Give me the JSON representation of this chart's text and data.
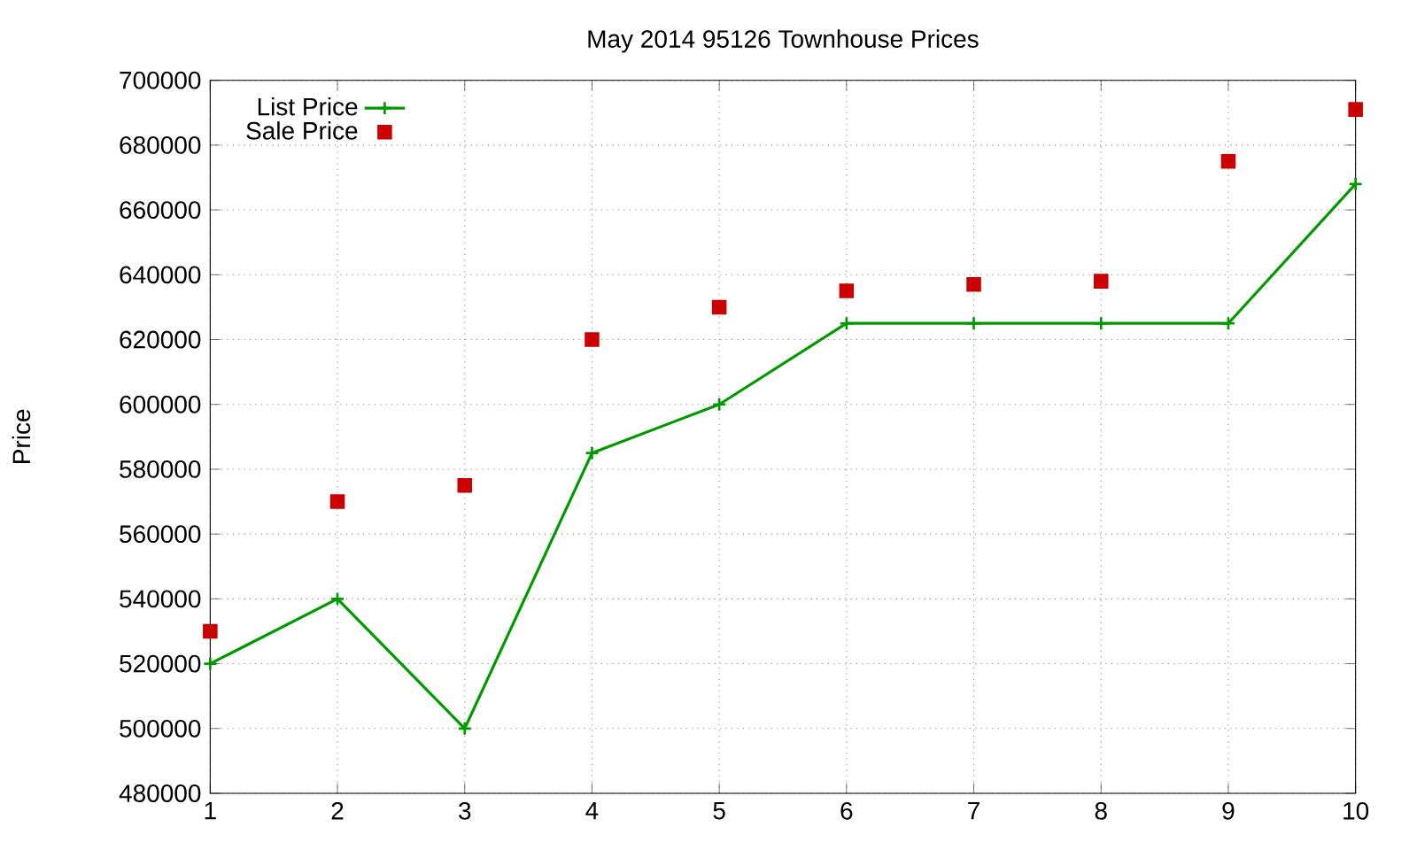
{
  "chart_data": {
    "type": "line",
    "title": "May 2014 95126 Townhouse Prices",
    "ylabel": "Price",
    "x": [
      1,
      2,
      3,
      4,
      5,
      6,
      7,
      8,
      9,
      10
    ],
    "series": [
      {
        "name": "List Price",
        "color": "#009900",
        "marker": "cross",
        "values": [
          520000,
          540000,
          500000,
          585000,
          600000,
          625000,
          625000,
          625000,
          625000,
          668000
        ]
      },
      {
        "name": "Sale Price",
        "type": "scatter",
        "color": "#cc0000",
        "marker": "square",
        "values": [
          530000,
          570000,
          575000,
          620000,
          630000,
          635000,
          637000,
          638000,
          675000,
          691000
        ]
      }
    ],
    "xlim": [
      1,
      10
    ],
    "xticks": [
      1,
      2,
      3,
      4,
      5,
      6,
      7,
      8,
      9,
      10
    ],
    "ylim": [
      480000,
      700000
    ],
    "yticks": [
      480000,
      500000,
      520000,
      540000,
      560000,
      580000,
      600000,
      620000,
      640000,
      660000,
      680000,
      700000
    ],
    "grid": true,
    "legend": "top left"
  }
}
